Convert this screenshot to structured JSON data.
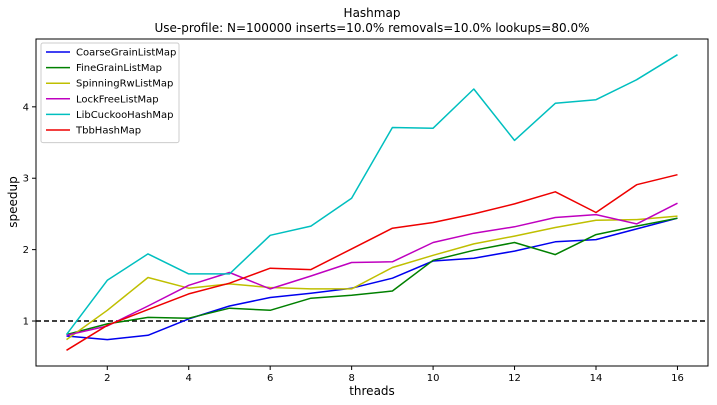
{
  "chart_data": {
    "type": "line",
    "title": "Hashmap",
    "subtitle": "Use-profile: N=100000 inserts=10.0% removals=10.0% lookups=80.0%",
    "xlabel": "threads",
    "ylabel": "speedup",
    "xlim": [
      0.25,
      16.75
    ],
    "ylim": [
      0.37,
      4.95
    ],
    "xticks": [
      2,
      4,
      6,
      8,
      10,
      12,
      14,
      16
    ],
    "yticks": [
      1,
      2,
      3,
      4
    ],
    "grid": false,
    "legend_position": "top-left",
    "reference_line": {
      "y": 1,
      "style": "dashed",
      "color": "#000000"
    },
    "x": [
      1,
      2,
      3,
      4,
      5,
      6,
      7,
      8,
      9,
      10,
      11,
      12,
      13,
      14,
      15,
      16
    ],
    "series": [
      {
        "name": "CoarseGrainListMap",
        "color": "#0000ee",
        "values": [
          0.79,
          0.74,
          0.8,
          1.03,
          1.21,
          1.33,
          1.39,
          1.46,
          1.6,
          1.84,
          1.88,
          1.98,
          2.11,
          2.14,
          2.29,
          2.44
        ]
      },
      {
        "name": "FineGrainListMap",
        "color": "#008000",
        "values": [
          0.81,
          0.96,
          1.05,
          1.04,
          1.18,
          1.15,
          1.32,
          1.36,
          1.42,
          1.85,
          1.99,
          2.1,
          1.93,
          2.21,
          2.33,
          2.44
        ]
      },
      {
        "name": "SpinningRwListMap",
        "color": "#bfbf00",
        "values": [
          0.74,
          1.15,
          1.61,
          1.46,
          1.52,
          1.47,
          1.45,
          1.45,
          1.75,
          1.92,
          2.08,
          2.19,
          2.31,
          2.41,
          2.42,
          2.47
        ]
      },
      {
        "name": "LockFreeListMap",
        "color": "#bf00bf",
        "values": [
          0.8,
          0.93,
          1.21,
          1.5,
          1.68,
          1.45,
          1.63,
          1.82,
          1.83,
          2.1,
          2.23,
          2.32,
          2.45,
          2.49,
          2.36,
          2.65
        ]
      },
      {
        "name": "LibCuckooHashMap",
        "color": "#00bfbf",
        "values": [
          0.81,
          1.57,
          1.94,
          1.66,
          1.66,
          2.2,
          2.33,
          2.72,
          3.71,
          3.7,
          4.25,
          3.53,
          4.05,
          4.1,
          4.38,
          4.73
        ]
      },
      {
        "name": "TbbHashMap",
        "color": "#ee0000",
        "values": [
          0.59,
          0.94,
          1.16,
          1.38,
          1.53,
          1.74,
          1.72,
          2.01,
          2.3,
          2.38,
          2.5,
          2.64,
          2.81,
          2.52,
          2.91,
          3.05
        ]
      }
    ]
  }
}
